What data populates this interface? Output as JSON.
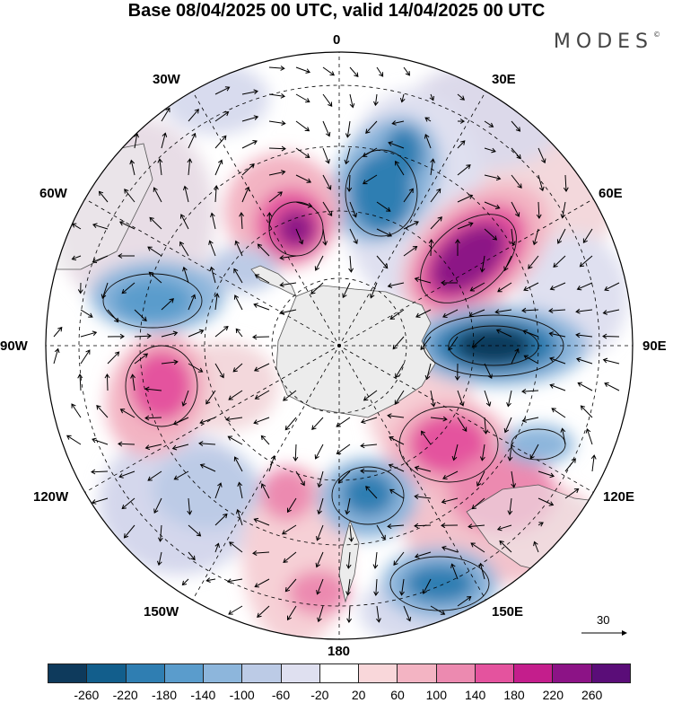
{
  "title": "Base 08/04/2025 00 UTC, valid 14/04/2025 00 UTC",
  "brand": "MODES",
  "brand_mark": "©",
  "longitude_labels": [
    "0",
    "30E",
    "60E",
    "90E",
    "120E",
    "150E",
    "180",
    "150W",
    "120W",
    "90W",
    "60W",
    "30W"
  ],
  "vector_reference": "30",
  "colorbar": {
    "ticks": [
      "-260",
      "-220",
      "-180",
      "-140",
      "-100",
      "-60",
      "-20",
      "20",
      "60",
      "100",
      "140",
      "180",
      "220",
      "260"
    ],
    "colors": [
      "#0e3a5c",
      "#125e8c",
      "#2f7eb2",
      "#5a9ccc",
      "#8db6dc",
      "#bccbe6",
      "#dfe0f0",
      "#ffffff",
      "#f9d7da",
      "#f3b4c3",
      "#ec8ab0",
      "#e4539e",
      "#c41e8c",
      "#8c1386",
      "#5a0d78"
    ]
  }
}
